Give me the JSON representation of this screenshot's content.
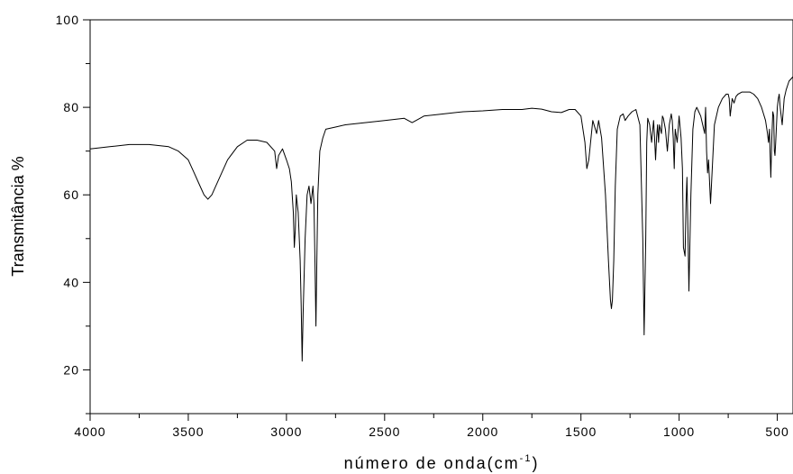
{
  "chart_data": {
    "type": "line",
    "title": "",
    "ylabel": "Transmitância %",
    "xlabel": {
      "text": "número de onda(cm",
      "superscript": "-1",
      "suffix": ")"
    },
    "xlim": [
      4000,
      420
    ],
    "ylim": [
      10,
      100
    ],
    "x_reversed": true,
    "x_ticks": [
      4000,
      3500,
      3000,
      2500,
      2000,
      1500,
      1000,
      500
    ],
    "y_ticks": [
      20,
      40,
      60,
      80,
      100
    ],
    "grid": false,
    "legend": "none",
    "line_color": "#000000",
    "series": [
      {
        "x": [
          4000,
          3900,
          3800,
          3700,
          3600,
          3550,
          3500,
          3470,
          3440,
          3420,
          3400,
          3380,
          3350,
          3300,
          3250,
          3200,
          3150,
          3100,
          3060,
          3050,
          3040,
          3020,
          3000,
          2985,
          2975,
          2965,
          2960,
          2955,
          2950,
          2940,
          2930,
          2925,
          2920,
          2915,
          2905,
          2895,
          2885,
          2875,
          2870,
          2865,
          2860,
          2855,
          2850,
          2845,
          2840,
          2830,
          2815,
          2800,
          2750,
          2700,
          2600,
          2500,
          2400,
          2360,
          2340,
          2320,
          2300,
          2200,
          2100,
          2000,
          1900,
          1800,
          1750,
          1700,
          1650,
          1600,
          1560,
          1530,
          1500,
          1480,
          1470,
          1460,
          1440,
          1420,
          1410,
          1395,
          1375,
          1360,
          1350,
          1345,
          1340,
          1333,
          1325,
          1315,
          1300,
          1285,
          1275,
          1260,
          1240,
          1220,
          1200,
          1185,
          1178,
          1170,
          1165,
          1160,
          1150,
          1140,
          1130,
          1125,
          1120,
          1115,
          1110,
          1105,
          1100,
          1090,
          1085,
          1080,
          1070,
          1060,
          1050,
          1040,
          1035,
          1030,
          1025,
          1020,
          1010,
          1000,
          990,
          983,
          978,
          970,
          965,
          960,
          955,
          950,
          940,
          930,
          920,
          910,
          900,
          890,
          880,
          870,
          865,
          860,
          855,
          850,
          840,
          820,
          800,
          780,
          760,
          750,
          745,
          740,
          730,
          720,
          710,
          700,
          680,
          660,
          640,
          620,
          600,
          580,
          560,
          550,
          545,
          540,
          537,
          533,
          528,
          523,
          518,
          515,
          512,
          508,
          500,
          495,
          490,
          485,
          475,
          465,
          455,
          440,
          430,
          420
        ],
        "y": [
          70.5,
          71,
          71.5,
          71.5,
          71,
          70,
          68,
          65,
          62,
          60,
          59,
          60,
          63,
          68,
          71,
          72.5,
          72.5,
          72,
          70,
          66,
          69,
          70.5,
          68,
          66,
          63,
          56,
          48,
          52,
          60,
          56,
          45,
          35,
          22,
          33,
          50,
          60,
          62,
          58,
          60,
          62,
          58,
          45,
          30,
          45,
          60,
          70,
          73,
          75,
          75.5,
          76,
          76.5,
          77,
          77.5,
          76.5,
          77,
          77.5,
          78,
          78.5,
          79,
          79.2,
          79.5,
          79.5,
          79.8,
          79.6,
          79,
          78.8,
          79.5,
          79.5,
          78,
          72,
          66,
          68,
          77,
          74,
          77,
          73,
          60,
          45,
          36,
          34,
          36,
          45,
          62,
          75,
          78,
          78.5,
          77,
          78,
          79,
          79.5,
          76,
          50,
          28,
          50,
          72,
          77.5,
          76,
          72,
          77,
          73,
          68,
          73,
          76,
          72,
          76,
          74,
          78,
          77.5,
          75,
          70,
          76,
          78.5,
          77,
          73,
          66,
          75,
          72,
          78,
          73,
          66,
          48,
          46,
          58,
          64,
          52,
          38,
          60,
          75,
          79,
          80,
          79,
          78,
          76,
          74,
          80,
          70,
          65,
          68,
          58,
          76,
          80,
          82,
          83,
          83,
          82,
          78,
          82,
          81,
          82.5,
          83,
          83.5,
          83.5,
          83.5,
          83,
          82,
          80,
          77,
          74,
          72,
          75,
          70,
          64,
          73,
          79,
          78,
          70,
          69,
          72,
          80,
          82,
          83,
          80,
          76,
          82,
          84,
          86,
          86.5,
          87
        ]
      }
    ]
  }
}
